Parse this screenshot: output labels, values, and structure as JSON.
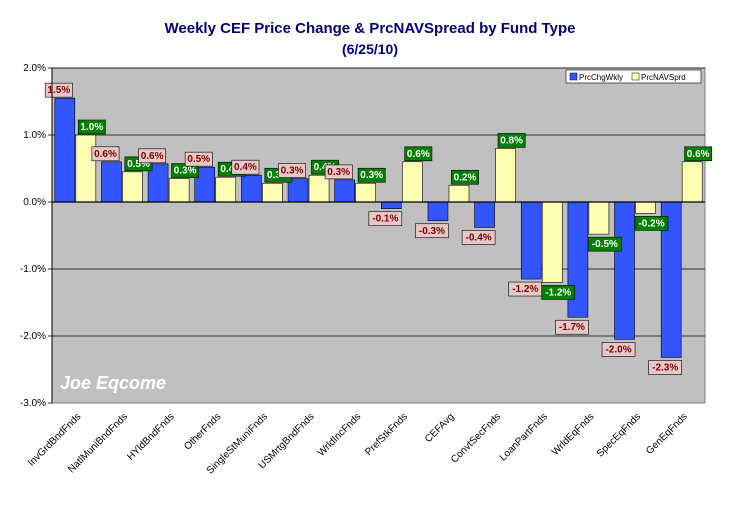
{
  "chart_data": {
    "type": "bar",
    "title": "Weekly CEF Price Change & PrcNAVSpread by Fund Type",
    "subtitle": "(6/25/10)",
    "watermark": "Joe Eqcome",
    "categories": [
      "InvGrdBndFnds",
      "NatlMuniBndFnds",
      "HYldBndFnds",
      "OtherFnds",
      "SingleStMuniFnds",
      "USMrtgBndFnds",
      "WrldIncFnds",
      "PrefStkFnds",
      "CEFAvg",
      "ConvtSecFnds",
      "LoanPartFnds",
      "WrldEqFnds",
      "SpecEqFnds",
      "GenEqFnds"
    ],
    "series": [
      {
        "name": "PrcChgWkly",
        "color": "#3355ff",
        "values": [
          1.55,
          0.6,
          0.57,
          0.52,
          0.4,
          0.35,
          0.33,
          -0.1,
          -0.28,
          -0.38,
          -1.15,
          -1.72,
          -2.05,
          -2.32
        ],
        "labels": [
          "1.5%",
          "0.6%",
          "0.6%",
          "0.5%",
          "0.4%",
          "0.3%",
          "0.3%",
          "-0.1%",
          "-0.3%",
          "-0.4%",
          "-1.2%",
          "-1.7%",
          "-2.0%",
          "-2.3%"
        ]
      },
      {
        "name": "PrcNAVSprd",
        "color": "#ffffb3",
        "values": [
          1.0,
          0.45,
          0.35,
          0.37,
          0.28,
          0.4,
          0.28,
          0.6,
          0.25,
          0.8,
          -1.2,
          -0.48,
          -0.17,
          0.6
        ],
        "labels": [
          "1.0%",
          "0.5%",
          "0.3%",
          "0.4%",
          "0.3%",
          "0.4%",
          "0.3%",
          "0.6%",
          "0.2%",
          "0.8%",
          "-1.2%",
          "-0.5%",
          "-0.2%",
          "0.6%"
        ]
      }
    ],
    "ylim": [
      -3.0,
      2.0
    ],
    "yticks": [
      2.0,
      1.0,
      0.0,
      -1.0,
      -2.0,
      -3.0
    ],
    "ytick_labels": [
      "2.0%",
      "1.0%",
      "0.0%",
      "-1.0%",
      "-2.0%",
      "-3.0%"
    ],
    "grid": true,
    "legend_position": "top-right",
    "plot_background": "#c0c0c0"
  }
}
